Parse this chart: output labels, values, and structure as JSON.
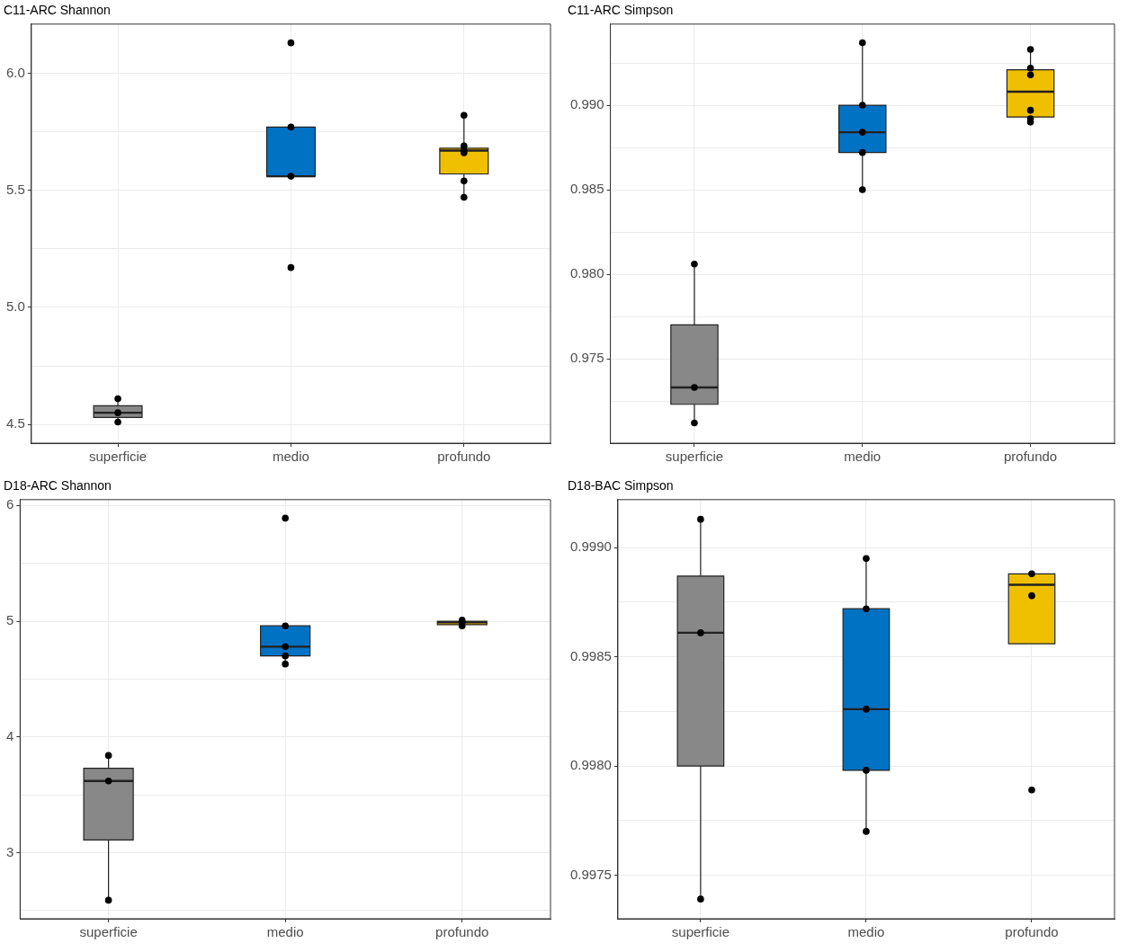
{
  "chart_data": [
    {
      "type": "box",
      "title": "C11-ARC Shannon",
      "categories": [
        "superficie",
        "medio",
        "profundo"
      ],
      "ylim": [
        4.42,
        6.21
      ],
      "yticks": [
        {
          "value": 4.5,
          "label": "4.5"
        },
        {
          "value": 4.75,
          "label": null
        },
        {
          "value": 5.0,
          "label": "5.0"
        },
        {
          "value": 5.25,
          "label": null
        },
        {
          "value": 5.5,
          "label": "5.5"
        },
        {
          "value": 5.75,
          "label": null
        },
        {
          "value": 6.0,
          "label": "6.0"
        }
      ],
      "grid": true,
      "marker": "circle",
      "series": [
        {
          "type": "box",
          "colors": [
            "#888888",
            "#0072c3",
            "#f0c000"
          ],
          "boxes": [
            {
              "low": 4.51,
              "q1": 4.53,
              "median": 4.55,
              "q3": 4.58,
              "high": 4.61
            },
            {
              "low": 5.56,
              "q1": 5.56,
              "median": 5.56,
              "q3": 5.77,
              "high": 5.77
            },
            {
              "low": 5.47,
              "q1": 5.57,
              "median": 5.67,
              "q3": 5.68,
              "high": 5.82
            }
          ]
        },
        {
          "type": "scatter",
          "color": "#000000",
          "x": [
            "superficie",
            "superficie",
            "superficie",
            "medio",
            "medio",
            "medio",
            "medio",
            "profundo",
            "profundo",
            "profundo",
            "profundo",
            "profundo",
            "profundo"
          ],
          "values": [
            4.61,
            4.55,
            4.51,
            6.13,
            5.77,
            5.56,
            5.17,
            5.82,
            5.69,
            5.67,
            5.66,
            5.54,
            5.47
          ]
        }
      ]
    },
    {
      "type": "box",
      "title": "C11-ARC Simpson",
      "categories": [
        "superficie",
        "medio",
        "profundo"
      ],
      "ylim": [
        0.97,
        0.9948
      ],
      "yticks": [
        {
          "value": 0.9725,
          "label": null
        },
        {
          "value": 0.975,
          "label": "0.975"
        },
        {
          "value": 0.9775,
          "label": null
        },
        {
          "value": 0.98,
          "label": "0.980"
        },
        {
          "value": 0.9825,
          "label": null
        },
        {
          "value": 0.985,
          "label": "0.985"
        },
        {
          "value": 0.9875,
          "label": null
        },
        {
          "value": 0.99,
          "label": "0.990"
        },
        {
          "value": 0.9925,
          "label": null
        }
      ],
      "grid": true,
      "marker": "circle",
      "series": [
        {
          "type": "box",
          "colors": [
            "#888888",
            "#0072c3",
            "#f0c000"
          ],
          "boxes": [
            {
              "low": 0.9712,
              "q1": 0.9723,
              "median": 0.9733,
              "q3": 0.977,
              "high": 0.9806
            },
            {
              "low": 0.985,
              "q1": 0.9872,
              "median": 0.9884,
              "q3": 0.99,
              "high": 0.9937
            },
            {
              "low": 0.989,
              "q1": 0.9893,
              "median": 0.9908,
              "q3": 0.9921,
              "high": 0.9933
            }
          ]
        },
        {
          "type": "scatter",
          "color": "#000000",
          "x": [
            "superficie",
            "superficie",
            "superficie",
            "medio",
            "medio",
            "medio",
            "medio",
            "medio",
            "profundo",
            "profundo",
            "profundo",
            "profundo",
            "profundo",
            "profundo"
          ],
          "values": [
            0.9806,
            0.9733,
            0.9712,
            0.9937,
            0.99,
            0.9884,
            0.9872,
            0.985,
            0.9933,
            0.9922,
            0.9918,
            0.9897,
            0.9892,
            0.989
          ]
        }
      ]
    },
    {
      "type": "box",
      "title": "D18-ARC Shannon",
      "categories": [
        "superficie",
        "medio",
        "profundo"
      ],
      "ylim": [
        2.43,
        6.05
      ],
      "yticks": [
        {
          "value": 2.5,
          "label": null
        },
        3,
        {
          "value": 3.5,
          "label": null
        },
        4,
        {
          "value": 4.5,
          "label": null
        },
        5,
        {
          "value": 5.5,
          "label": null
        },
        6
      ],
      "grid": true,
      "marker": "circle",
      "series": [
        {
          "type": "box",
          "colors": [
            "#888888",
            "#0072c3",
            "#f0c000"
          ],
          "boxes": [
            {
              "low": 2.59,
              "q1": 3.11,
              "median": 3.62,
              "q3": 3.73,
              "high": 3.84
            },
            {
              "low": 4.63,
              "q1": 4.7,
              "median": 4.78,
              "q3": 4.96,
              "high": 4.96
            },
            {
              "low": 4.96,
              "q1": 4.97,
              "median": 4.99,
              "q3": 5.0,
              "high": 5.01
            }
          ]
        },
        {
          "type": "scatter",
          "color": "#000000",
          "x": [
            "superficie",
            "superficie",
            "superficie",
            "medio",
            "medio",
            "medio",
            "medio",
            "medio",
            "profundo",
            "profundo",
            "profundo"
          ],
          "values": [
            3.84,
            3.62,
            2.59,
            5.89,
            4.96,
            4.78,
            4.7,
            4.63,
            5.01,
            4.99,
            4.96
          ]
        }
      ]
    },
    {
      "type": "box",
      "title": "D18-BAC Simpson",
      "categories": [
        "superficie",
        "medio",
        "profundo"
      ],
      "ylim": [
        0.9973,
        0.99922
      ],
      "yticks": [
        {
          "value": 0.9975,
          "label": "0.9975"
        },
        {
          "value": 0.99775,
          "label": null
        },
        {
          "value": 0.998,
          "label": "0.9980"
        },
        {
          "value": 0.99825,
          "label": null
        },
        {
          "value": 0.9985,
          "label": "0.9985"
        },
        {
          "value": 0.99875,
          "label": null
        },
        {
          "value": 0.999,
          "label": "0.9990"
        }
      ],
      "grid": true,
      "marker": "circle",
      "series": [
        {
          "type": "box",
          "colors": [
            "#888888",
            "#0072c3",
            "#f0c000"
          ],
          "boxes": [
            {
              "low": 0.99739,
              "q1": 0.998,
              "median": 0.99861,
              "q3": 0.99887,
              "high": 0.99913
            },
            {
              "low": 0.9977,
              "q1": 0.99798,
              "median": 0.99826,
              "q3": 0.99872,
              "high": 0.99895
            },
            {
              "low": 0.99856,
              "q1": 0.99856,
              "median": 0.99883,
              "q3": 0.99888,
              "high": 0.99888
            }
          ]
        },
        {
          "type": "scatter",
          "color": "#000000",
          "x": [
            "superficie",
            "superficie",
            "superficie",
            "medio",
            "medio",
            "medio",
            "medio",
            "medio",
            "profundo",
            "profundo",
            "profundo"
          ],
          "values": [
            0.99913,
            0.99861,
            0.99739,
            0.99895,
            0.99872,
            0.99826,
            0.99798,
            0.9977,
            0.99888,
            0.99878,
            0.99789
          ]
        }
      ]
    }
  ]
}
